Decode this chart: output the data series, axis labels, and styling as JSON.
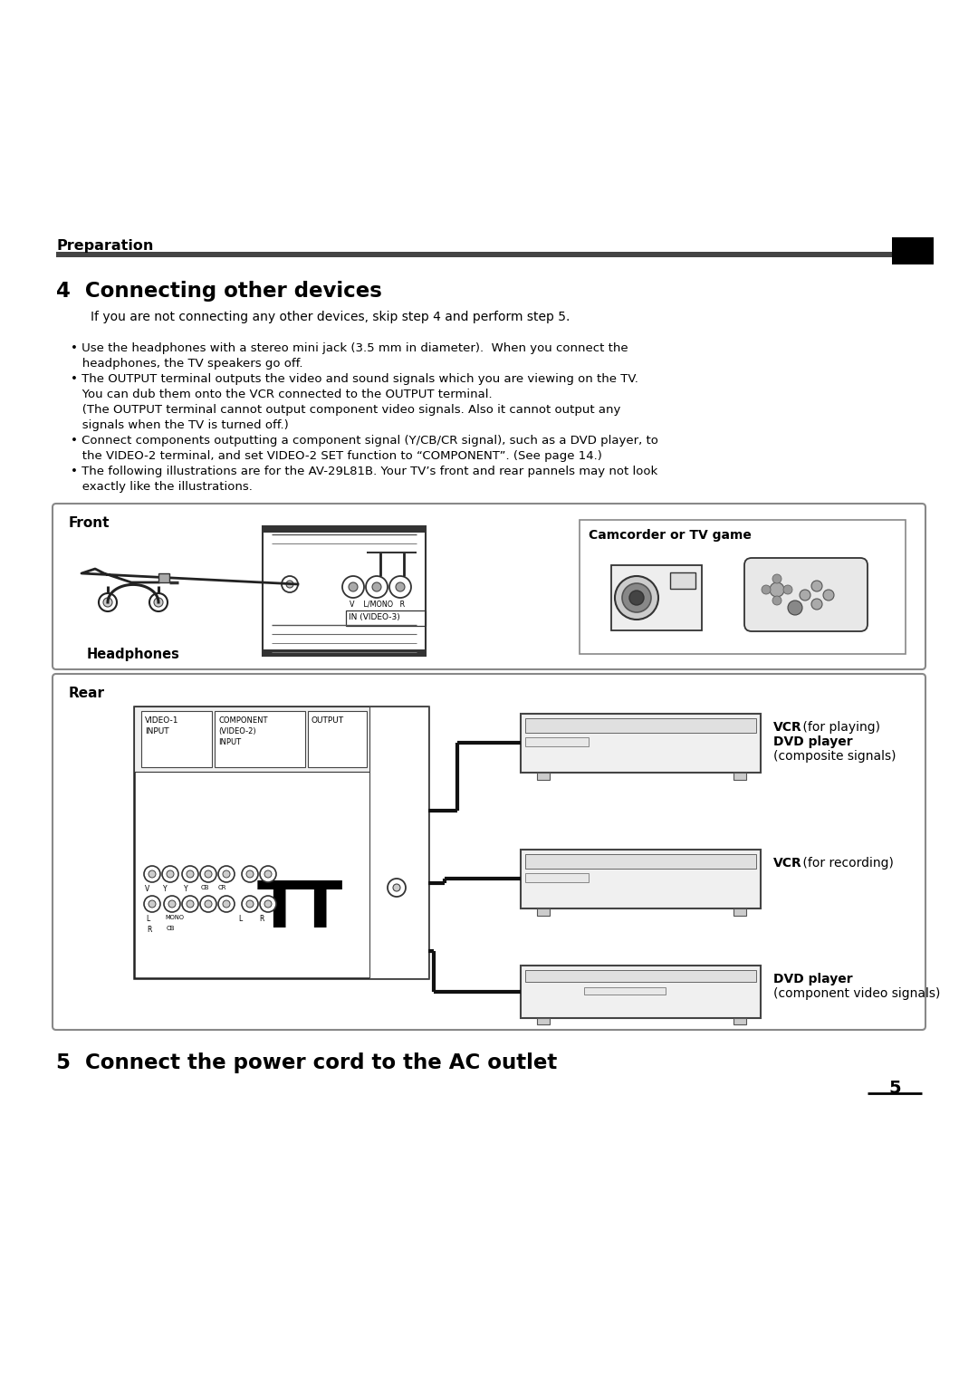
{
  "bg_color": "#ffffff",
  "section_label": "Preparation",
  "title_4": "4  Connecting other devices",
  "subtitle_4": "If you are not connecting any other devices, skip step 4 and perform step 5.",
  "bullet1a": "• Use the headphones with a stereo mini jack (3.5 mm in diameter).  When you connect the",
  "bullet1b": "   headphones, the TV speakers go off.",
  "bullet2a": "• The OUTPUT terminal outputs the video and sound signals which you are viewing on the TV.",
  "bullet2b": "   You can dub them onto the VCR connected to the OUTPUT terminal.",
  "bullet2c": "   (The OUTPUT terminal cannot output component video signals. Also it cannot output any",
  "bullet2d": "   signals when the TV is turned off.)",
  "bullet3a": "• Connect components outputting a component signal (Y/CB/CR signal), such as a DVD player, to",
  "bullet3b": "   the VIDEO-2 terminal, and set VIDEO-2 SET function to “COMPONENT”. (See page 14.)",
  "bullet4a": "• The following illustrations are for the AV-29L81B. Your TV’s front and rear pannels may not look",
  "bullet4b": "   exactly like the illustrations.",
  "front_label": "Front",
  "headphones_label": "Headphones",
  "camcorder_label": "Camcorder or TV game",
  "in_video3_label": "IN (VIDEO-3)",
  "rear_label": "Rear",
  "video1_input_line1": "VIDEO-1",
  "video1_input_line2": "INPUT",
  "component_line1": "COMPONENT",
  "component_line2": "(VIDEO-2)",
  "component_line3": "INPUT",
  "output_label": "OUTPUT",
  "vcr_play_bold": "VCR",
  "vcr_play_rest": " (for playing)",
  "dvd_play_bold": "DVD player",
  "dvd_play_rest": "(composite signals)",
  "vcr_rec_bold": "VCR",
  "vcr_rec_rest": " (for recording)",
  "dvd_comp_bold": "DVD player",
  "dvd_comp_rest": "(component video signals)",
  "title_5": "5  Connect the power cord to the AC outlet",
  "page_number": "5"
}
